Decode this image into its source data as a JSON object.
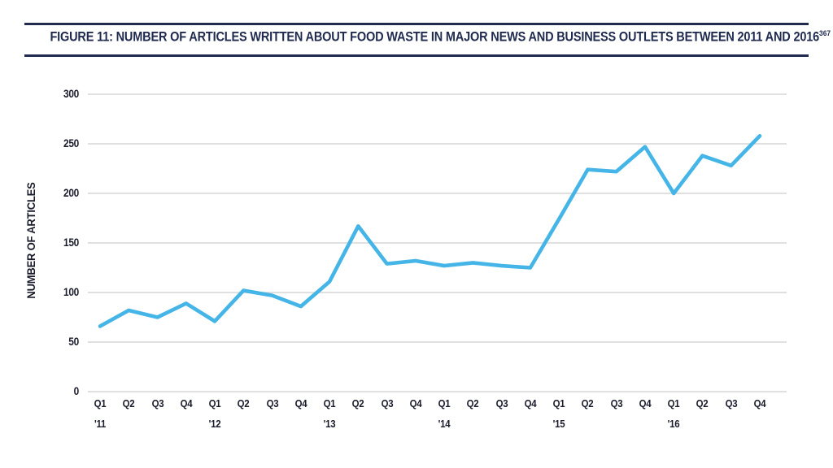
{
  "figure": {
    "title": "FIGURE 11: NUMBER OF ARTICLES WRITTEN ABOUT FOOD WASTE IN MAJOR NEWS AND BUSINESS OUTLETS BETWEEN 2011 AND 2016",
    "title_superscript": "367"
  },
  "colors": {
    "navy": "#1F2A4E",
    "line_blue": "#45B5E8",
    "gridline_gray": "#D6D6D6",
    "tick_text": "#1A1C2C"
  },
  "chart_data": {
    "type": "line",
    "title": "FIGURE 11: NUMBER OF ARTICLES WRITTEN ABOUT FOOD WASTE IN MAJOR NEWS AND BUSINESS OUTLETS BETWEEN 2011 AND 2016",
    "title_superscript": "367",
    "categories": [
      "Q1 '11",
      "Q2 '11",
      "Q3 '11",
      "Q4 '11",
      "Q1 '12",
      "Q2 '12",
      "Q3 '12",
      "Q4 '12",
      "Q1 '13",
      "Q2 '13",
      "Q3 '13",
      "Q4 '13",
      "Q1 '14",
      "Q2 '14",
      "Q3 '14",
      "Q4 '14",
      "Q1 '15",
      "Q2 '15",
      "Q3 '15",
      "Q4 '15",
      "Q1 '16",
      "Q2 '16",
      "Q3 '16",
      "Q4 '16"
    ],
    "quarter_labels": [
      "Q1",
      "Q2",
      "Q3",
      "Q4",
      "Q1",
      "Q2",
      "Q3",
      "Q4",
      "Q1",
      "Q2",
      "Q3",
      "Q4",
      "Q1",
      "Q2",
      "Q3",
      "Q4",
      "Q1",
      "Q2",
      "Q3",
      "Q4",
      "Q1",
      "Q2",
      "Q3",
      "Q4"
    ],
    "year_labels": [
      {
        "index": 0,
        "label": "'11"
      },
      {
        "index": 4,
        "label": "'12"
      },
      {
        "index": 8,
        "label": "'13"
      },
      {
        "index": 12,
        "label": "'14"
      },
      {
        "index": 16,
        "label": "'15"
      },
      {
        "index": 20,
        "label": "'16"
      }
    ],
    "values": [
      66,
      82,
      75,
      89,
      71,
      102,
      97,
      86,
      111,
      167,
      129,
      132,
      127,
      130,
      127,
      125,
      174,
      224,
      222,
      247,
      200,
      238,
      228,
      258
    ],
    "xlabel": "",
    "ylabel": "NUMBER OF ARTICLES",
    "yticks": [
      0,
      50,
      100,
      150,
      200,
      250,
      300
    ],
    "ylim": [
      0,
      300
    ],
    "grid": "horizontal",
    "legend": "none",
    "line_color": "#45B5E8"
  }
}
